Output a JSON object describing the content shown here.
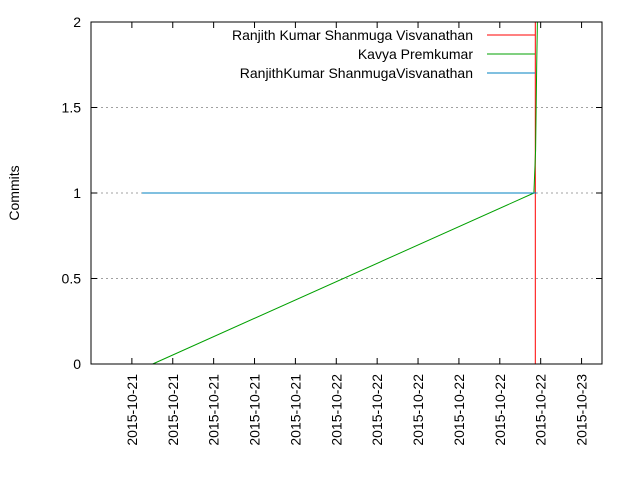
{
  "chart_data": {
    "type": "line",
    "title": "",
    "xlabel": "",
    "ylabel": "Commits",
    "ylim": [
      0,
      2
    ],
    "grid": true,
    "legend_placement": "top-right",
    "y_ticks": [
      "0",
      "0.5",
      "1",
      "1.5",
      "2"
    ],
    "y_tick_values": [
      0,
      0.5,
      1,
      1.5,
      2
    ],
    "x_ticks": [
      "2015-10-21",
      "2015-10-21",
      "2015-10-21",
      "2015-10-21",
      "2015-10-21",
      "2015-10-22",
      "2015-10-22",
      "2015-10-22",
      "2015-10-22",
      "2015-10-22",
      "2015-10-22",
      "2015-10-23"
    ],
    "x_tick_values": [
      "2015-10-21T04:48",
      "2015-10-21T09:36",
      "2015-10-21T14:24",
      "2015-10-21T19:12",
      "2015-10-22T00:00",
      "2015-10-22T04:48",
      "2015-10-22T09:36",
      "2015-10-22T14:24",
      "2015-10-22T19:12",
      "2015-10-23T00:00",
      "2015-10-23T04:48",
      "2015-10-23T09:36"
    ],
    "xlim": [
      "2015-10-21T00:00",
      "2015-10-23T12:00"
    ],
    "series": [
      {
        "name": "Ranjith Kumar Shanmuga Visvanathan",
        "color": "#ff0000",
        "x": [
          "2015-10-23T04:10",
          "2015-10-23T04:10",
          "2015-10-23T04:30"
        ],
        "y": [
          0,
          2,
          2
        ]
      },
      {
        "name": "Kavya Premkumar",
        "color": "#00a000",
        "x": [
          "2015-10-21T07:15",
          "2015-10-23T04:00",
          "2015-10-23T04:12",
          "2015-10-23T04:20",
          "2015-10-23T04:25"
        ],
        "y": [
          0,
          1,
          1.25,
          1.75,
          2
        ]
      },
      {
        "name": "RanjithKumar ShanmugaVisvanathan",
        "color": "#0080c0",
        "x": [
          "2015-10-21T06:00",
          "2015-10-23T04:20"
        ],
        "y": [
          1,
          1
        ]
      }
    ]
  }
}
